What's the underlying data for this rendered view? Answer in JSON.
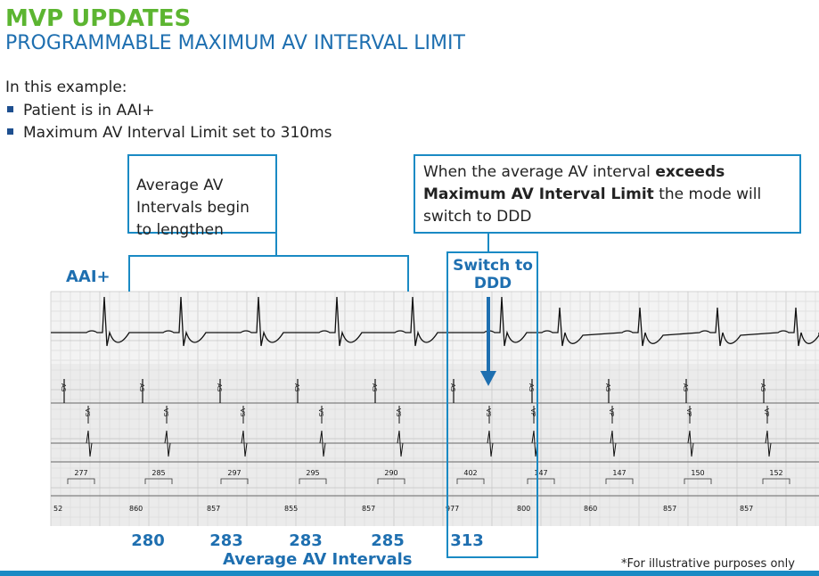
{
  "header": {
    "title": "MVP UPDATES",
    "subtitle": "PROGRAMMABLE MAXIMUM AV INTERVAL LIMIT"
  },
  "intro": "In this example:",
  "bullets": [
    "Patient is in AAI+",
    "Maximum AV Interval Limit set to 310ms"
  ],
  "callouts": {
    "left": "Average AV Intervals begin to lengthen",
    "right": [
      "When the average AV interval ",
      "exceeds Maximum AV Interval Limit",
      " the mode will switch to DDD"
    ]
  },
  "mode_label": "AAI+",
  "switch_label": "Switch to DDD",
  "strip": {
    "atrial_markers": [
      "AS",
      "AS",
      "AS",
      "AS",
      "AS",
      "AS",
      "AS",
      "AS",
      "AS",
      "AS"
    ],
    "ventricular_markers": [
      "VS",
      "VS",
      "VS",
      "VS",
      "VS",
      "VS",
      "VP",
      "VP",
      "VP",
      "VP"
    ],
    "av_intervals": [
      277,
      285,
      297,
      295,
      290,
      402,
      147,
      147,
      150,
      152
    ],
    "cycle_lengths": [
      52,
      860,
      857,
      855,
      857,
      977,
      800,
      860,
      857,
      857
    ]
  },
  "average_intervals": [
    280,
    283,
    283,
    285,
    313
  ],
  "average_label": "Average AV Intervals",
  "footnote": "*For illustrative purposes only"
}
